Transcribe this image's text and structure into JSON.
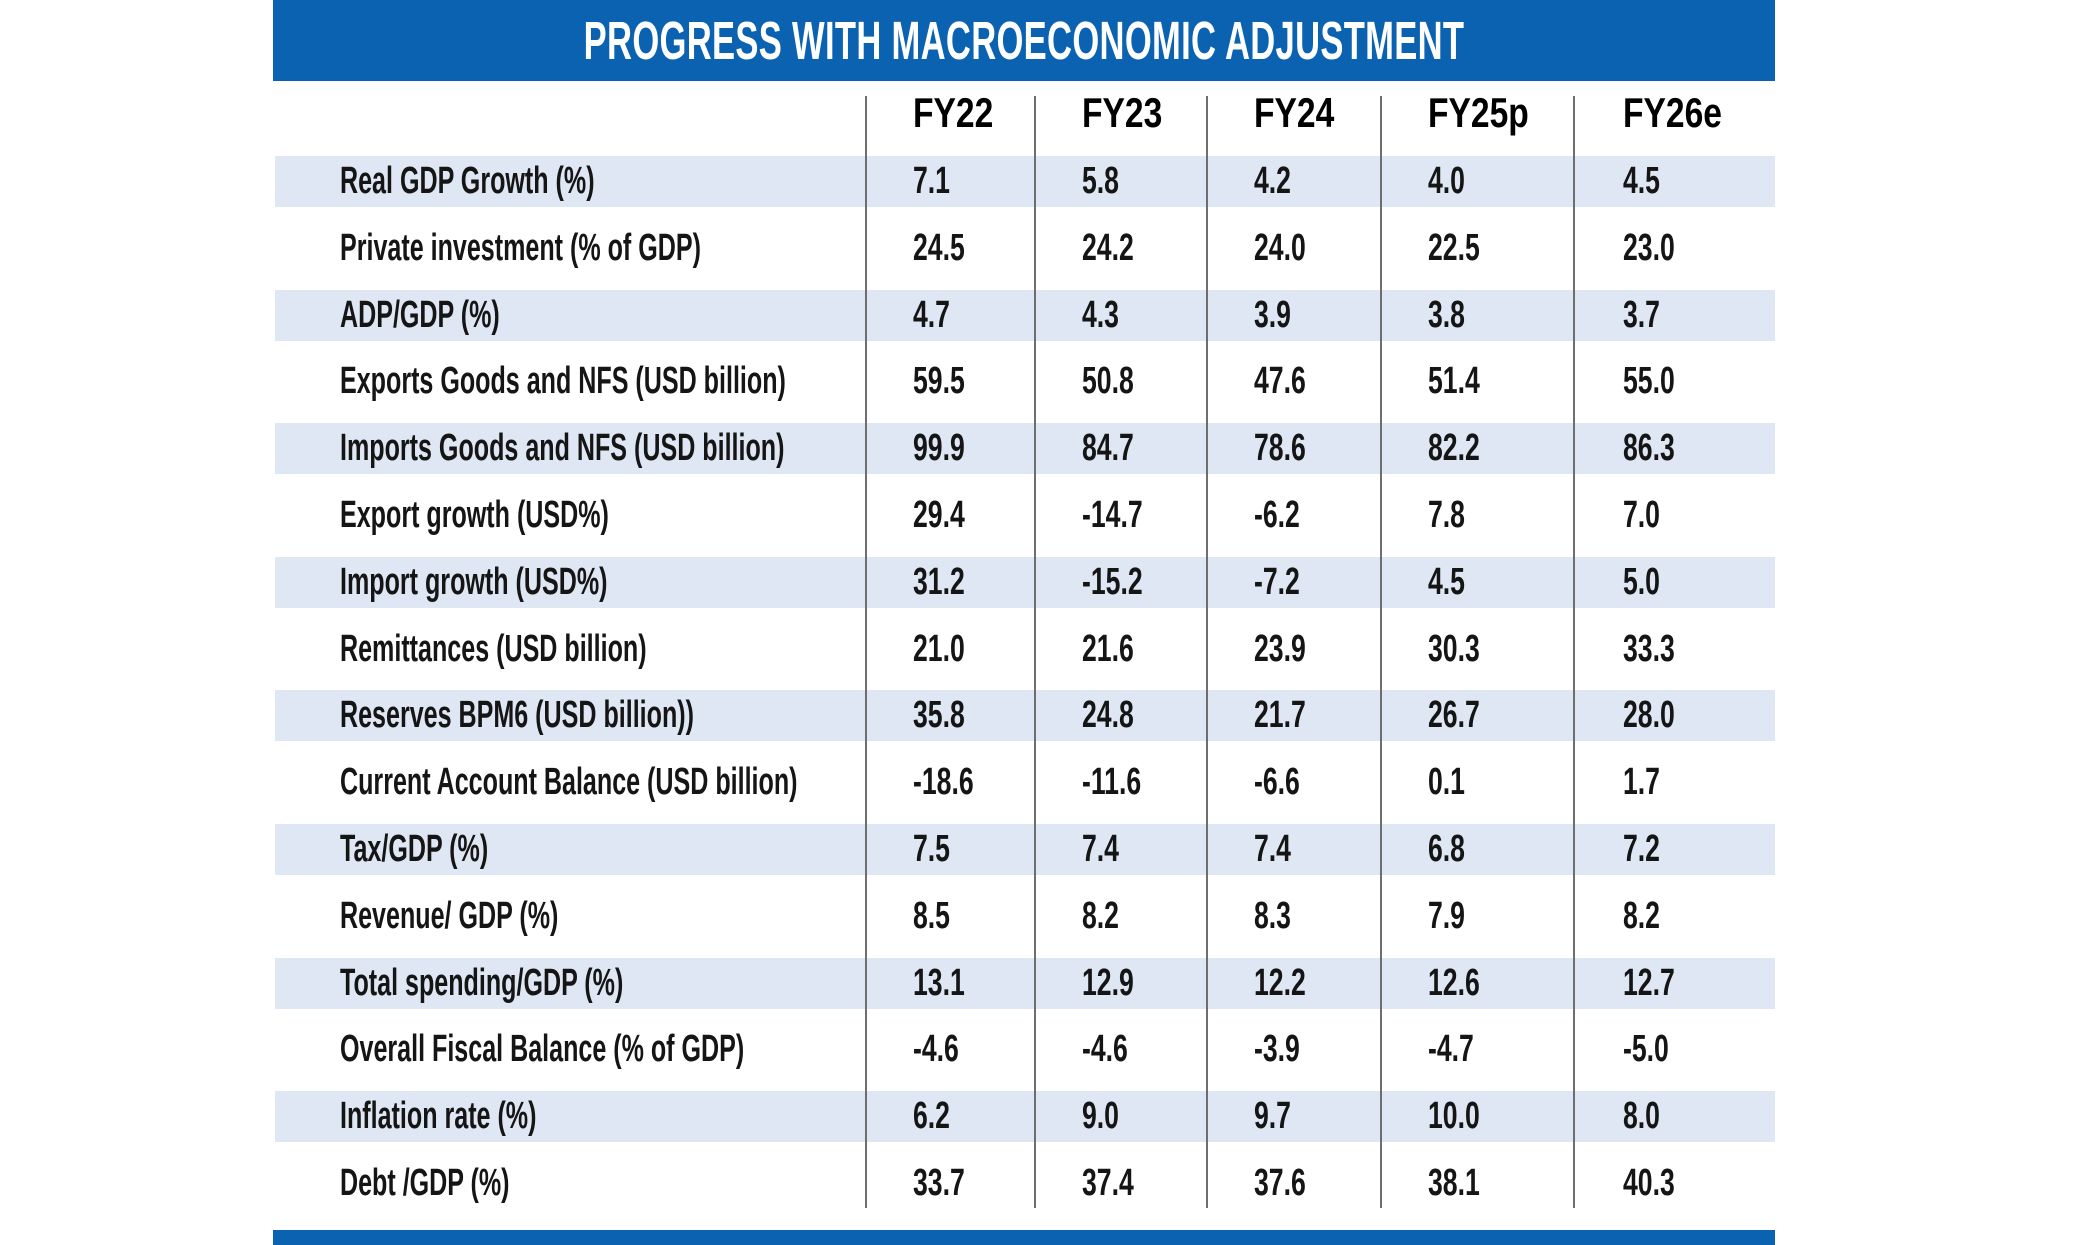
{
  "title": "PROGRESS WITH MACROECONOMIC ADJUSTMENT",
  "colors": {
    "accent_blue": "#0b62b1",
    "row_shade": "#dfe7f4",
    "divider_gray": "#6e6e6e",
    "header_text": "#000000",
    "body_text": "#151515",
    "title_text": "#ffffff"
  },
  "chart_data": {
    "type": "table",
    "title": "PROGRESS WITH MACROECONOMIC ADJUSTMENT",
    "columns": [
      "FY22",
      "FY23",
      "FY24",
      "FY25p",
      "FY26e"
    ],
    "rows": [
      {
        "label": "Real GDP Growth (%)",
        "values": [
          "7.1",
          "5.8",
          "4.2",
          "4.0",
          "4.5"
        ]
      },
      {
        "label": "Private investment (% of GDP)",
        "values": [
          "24.5",
          "24.2",
          "24.0",
          "22.5",
          "23.0"
        ]
      },
      {
        "label": "ADP/GDP (%)",
        "values": [
          "4.7",
          "4.3",
          "3.9",
          "3.8",
          "3.7"
        ]
      },
      {
        "label": "Exports Goods and NFS (USD billion)",
        "values": [
          "59.5",
          "50.8",
          "47.6",
          "51.4",
          "55.0"
        ]
      },
      {
        "label": "Imports Goods and NFS (USD billion)",
        "values": [
          "99.9",
          "84.7",
          "78.6",
          "82.2",
          "86.3"
        ]
      },
      {
        "label": "Export growth (USD%)",
        "values": [
          "29.4",
          "-14.7",
          "-6.2",
          "7.8",
          "7.0"
        ]
      },
      {
        "label": "Import growth (USD%)",
        "values": [
          "31.2",
          "-15.2",
          "-7.2",
          "4.5",
          "5.0"
        ]
      },
      {
        "label": "Remittances (USD billion)",
        "values": [
          "21.0",
          "21.6",
          "23.9",
          "30.3",
          "33.3"
        ]
      },
      {
        "label": "Reserves BPM6 (USD billion))",
        "values": [
          "35.8",
          "24.8",
          "21.7",
          "26.7",
          "28.0"
        ]
      },
      {
        "label": "Current Account Balance (USD billion)",
        "values": [
          "-18.6",
          "-11.6",
          "-6.6",
          "0.1",
          "1.7"
        ]
      },
      {
        "label": "Tax/GDP (%)",
        "values": [
          "7.5",
          "7.4",
          "7.4",
          "6.8",
          "7.2"
        ]
      },
      {
        "label": "Revenue/ GDP (%)",
        "values": [
          "8.5",
          "8.2",
          "8.3",
          "7.9",
          "8.2"
        ]
      },
      {
        "label": "Total spending/GDP (%)",
        "values": [
          "13.1",
          "12.9",
          "12.2",
          "12.6",
          "12.7"
        ]
      },
      {
        "label": "Overall Fiscal Balance (% of GDP)",
        "values": [
          "-4.6",
          "-4.6",
          "-3.9",
          "-4.7",
          "-5.0"
        ]
      },
      {
        "label": "Inflation rate (%)",
        "values": [
          "6.2",
          "9.0",
          "9.7",
          "10.0",
          "8.0"
        ]
      },
      {
        "label": "Debt /GDP (%)",
        "values": [
          "33.7",
          "37.4",
          "37.6",
          "38.1",
          "40.3"
        ]
      }
    ]
  }
}
